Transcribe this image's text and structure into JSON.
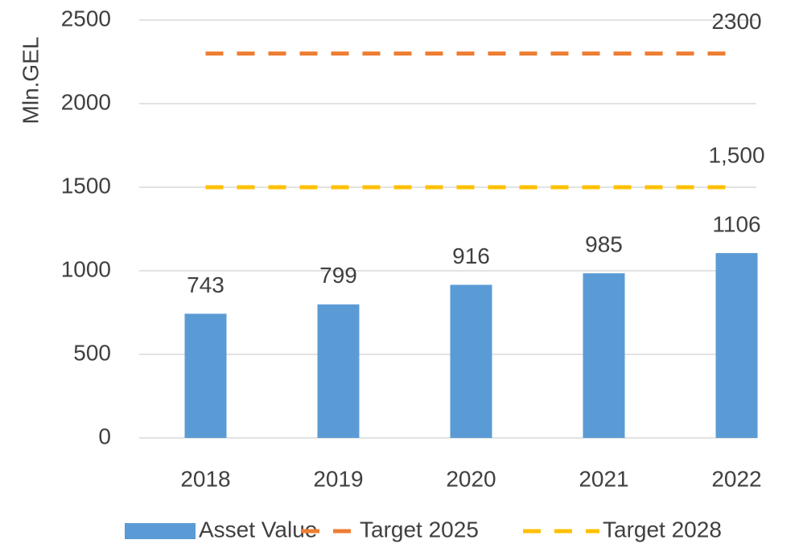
{
  "chart_data": {
    "type": "bar",
    "y_axis_label": "Mln.GEL",
    "categories": [
      "2018",
      "2019",
      "2020",
      "2021",
      "2022"
    ],
    "series": [
      {
        "name": "Asset Value",
        "type": "bar",
        "color": "#5b9bd5",
        "values": [
          743,
          799,
          916,
          985,
          1106
        ]
      },
      {
        "name": "Target 2025",
        "type": "line",
        "color": "#ed7d31",
        "values": [
          2300,
          2300,
          2300,
          2300,
          2300
        ]
      },
      {
        "name": "Target 2028",
        "type": "line",
        "color": "#ffc000",
        "values": [
          1500,
          1500,
          1500,
          1500,
          1500
        ],
        "value_labels": [
          null,
          null,
          null,
          null,
          "1,500"
        ]
      }
    ],
    "ylim": [
      0,
      2500
    ],
    "yticks": [
      0,
      500,
      1000,
      1500,
      2000,
      2500
    ],
    "grid": true,
    "legend": "bottom"
  }
}
